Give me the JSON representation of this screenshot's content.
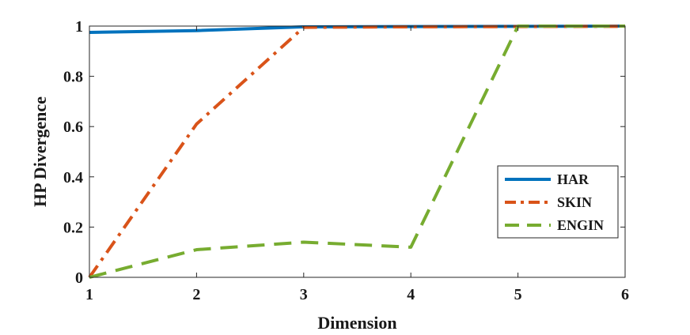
{
  "chart_data": {
    "type": "line",
    "title": "",
    "xlabel": "Dimension",
    "ylabel": "HP Divergence",
    "x": [
      1,
      2,
      3,
      4,
      5,
      6
    ],
    "xlim": [
      1,
      6
    ],
    "ylim": [
      0,
      1
    ],
    "xticks": [
      "1",
      "2",
      "3",
      "4",
      "5",
      "6"
    ],
    "yticks": [
      "0",
      "0.2",
      "0.4",
      "0.6",
      "0.8",
      "1"
    ],
    "grid": false,
    "legend_position": "right",
    "series": [
      {
        "name": "HAR",
        "color": "#0072BD",
        "style": "solid",
        "values": [
          0.975,
          0.982,
          0.997,
          0.998,
          0.999,
          1.0
        ]
      },
      {
        "name": "SKIN",
        "color": "#D95319",
        "style": "dashdot",
        "values": [
          0.0,
          0.61,
          0.995,
          0.997,
          0.998,
          0.999
        ]
      },
      {
        "name": "ENGIN",
        "color": "#77AC30",
        "style": "dashed",
        "values": [
          0.0,
          0.11,
          0.14,
          0.12,
          1.0,
          1.0
        ]
      }
    ]
  }
}
